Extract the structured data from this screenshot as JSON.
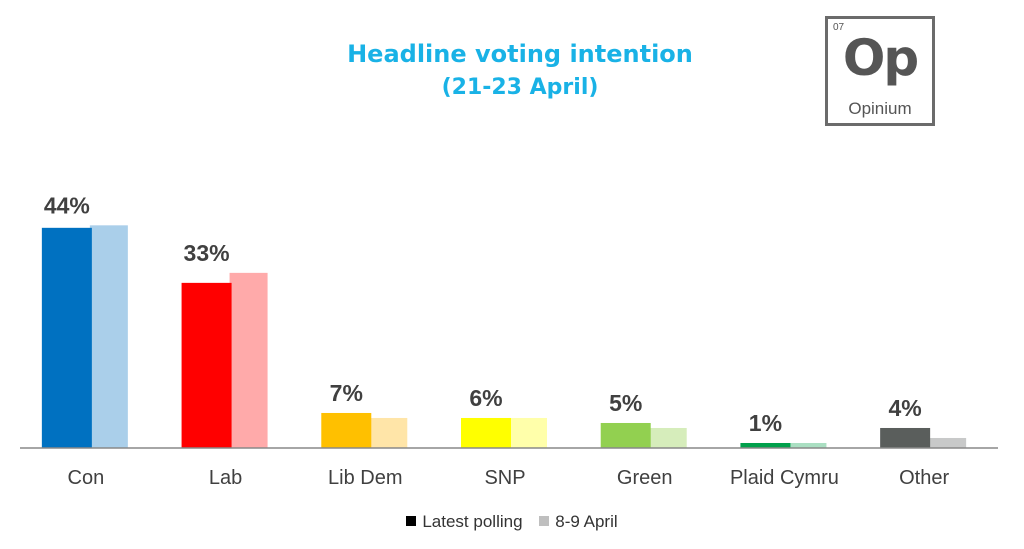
{
  "title": "Headline voting intention",
  "subtitle": "(21-23 April)",
  "logo": {
    "number": "07",
    "symbol": "Op",
    "name": "Opinium"
  },
  "colors": {
    "title": "#19b2e6",
    "axis": "#888888",
    "label": "#404040"
  },
  "chart_data": {
    "type": "bar",
    "title": "Headline voting intention (21-23 April)",
    "categories": [
      "Con",
      "Lab",
      "Lib Dem",
      "SNP",
      "Green",
      "Plaid Cymru",
      "Other"
    ],
    "series": [
      {
        "name": "Latest polling",
        "values": [
          44,
          33,
          7,
          6,
          5,
          1,
          4
        ],
        "colors": [
          "#0071c1",
          "#ff0000",
          "#ffc000",
          "#ffff00",
          "#92d050",
          "#00a04b",
          "#5a5e5c"
        ],
        "labels": [
          "44%",
          "33%",
          "7%",
          "6%",
          "5%",
          "1%",
          "4%"
        ]
      },
      {
        "name": "8-9 April",
        "values": [
          44.5,
          35,
          6,
          6,
          4,
          1,
          2
        ],
        "colors": [
          "#aacfea",
          "#ffaaaa",
          "#ffe5a8",
          "#ffffaa",
          "#d6edbb",
          "#aadfc2",
          "#c8c9c9"
        ]
      }
    ],
    "ylim": [
      0,
      50
    ],
    "legend": {
      "position": "bottom",
      "entries": [
        "Latest polling",
        "8-9 April"
      ],
      "colors": [
        "#000000",
        "#bfbfbf"
      ]
    }
  }
}
